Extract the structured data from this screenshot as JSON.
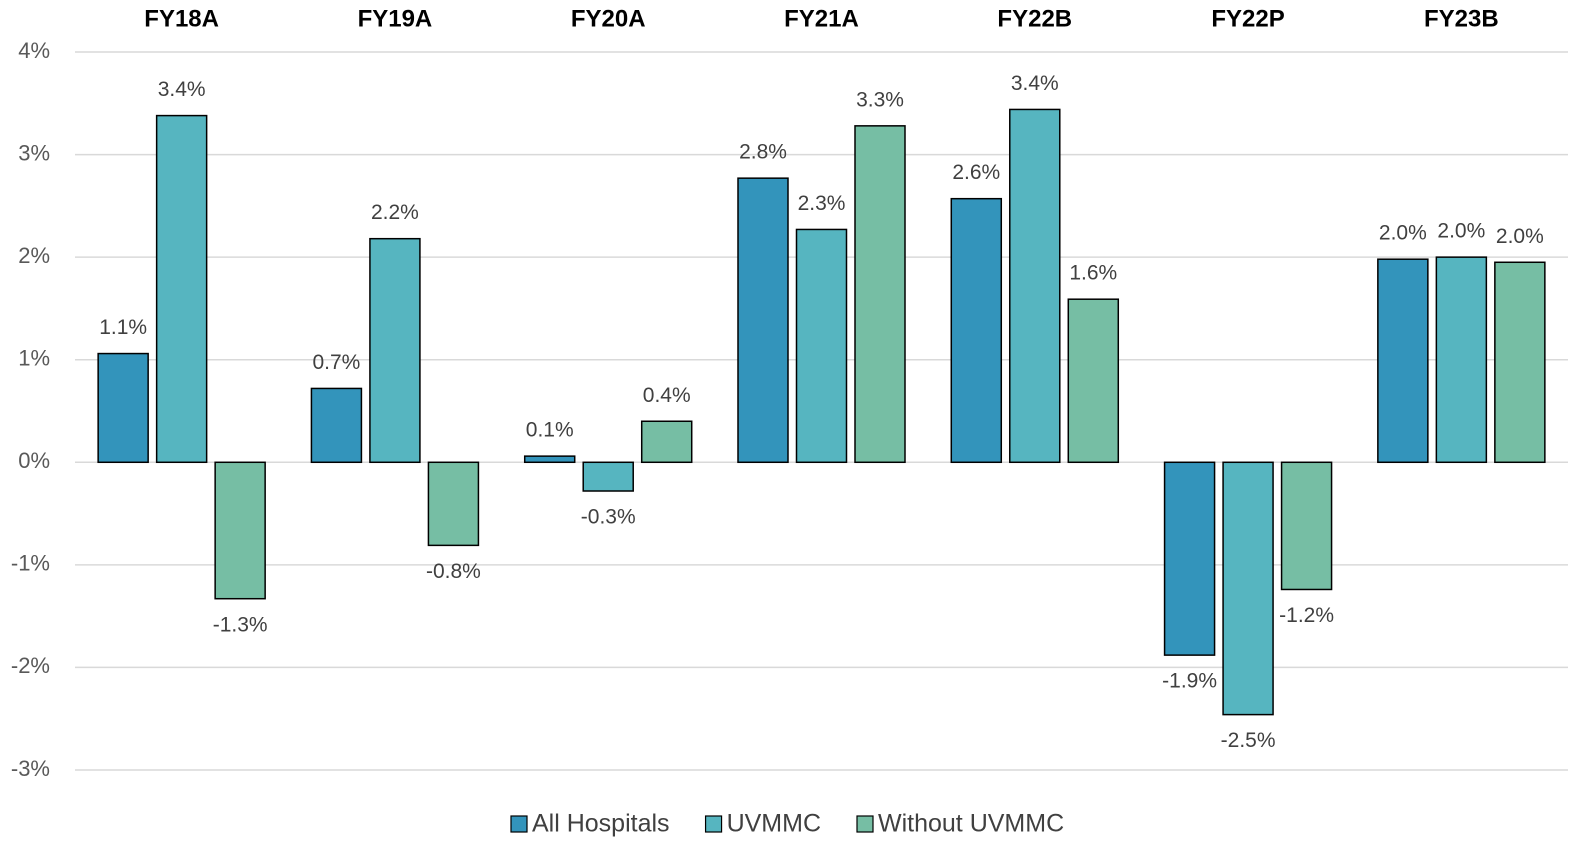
{
  "chart_data": {
    "type": "bar",
    "categories": [
      "FY18A",
      "FY19A",
      "FY20A",
      "FY21A",
      "FY22B",
      "FY22P",
      "FY23B"
    ],
    "series": [
      {
        "name": "All Hospitals",
        "color": "#3394bb",
        "values": [
          1.06,
          0.72,
          0.06,
          2.77,
          2.57,
          -1.88,
          1.98
        ],
        "value_labels": [
          "1.1%",
          "0.7%",
          "0.1%",
          "2.8%",
          "2.6%",
          "-1.9%",
          "2.0%"
        ]
      },
      {
        "name": "UVMMC",
        "color": "#56b5c0",
        "values": [
          3.38,
          2.18,
          -0.28,
          2.27,
          3.44,
          -2.46,
          2.0
        ],
        "value_labels": [
          "3.4%",
          "2.2%",
          "-0.3%",
          "2.3%",
          "3.4%",
          "-2.5%",
          "2.0%"
        ]
      },
      {
        "name": "Without UVMMC",
        "color": "#76bea4",
        "values": [
          -1.33,
          -0.81,
          0.4,
          3.28,
          1.59,
          -1.24,
          1.95
        ],
        "value_labels": [
          "-1.3%",
          "-0.8%",
          "0.4%",
          "3.3%",
          "1.6%",
          "-1.2%",
          "2.0%"
        ]
      }
    ],
    "ylim": [
      -3,
      4
    ],
    "yticks": [
      {
        "value": -3,
        "label": "-3%"
      },
      {
        "value": -2,
        "label": "-2%"
      },
      {
        "value": -1,
        "label": "-1%"
      },
      {
        "value": 0,
        "label": "0%"
      },
      {
        "value": 1,
        "label": "1%"
      },
      {
        "value": 2,
        "label": "2%"
      },
      {
        "value": 3,
        "label": "3%"
      },
      {
        "value": 4,
        "label": "4%"
      }
    ],
    "grid": true,
    "legend": "bottom"
  }
}
